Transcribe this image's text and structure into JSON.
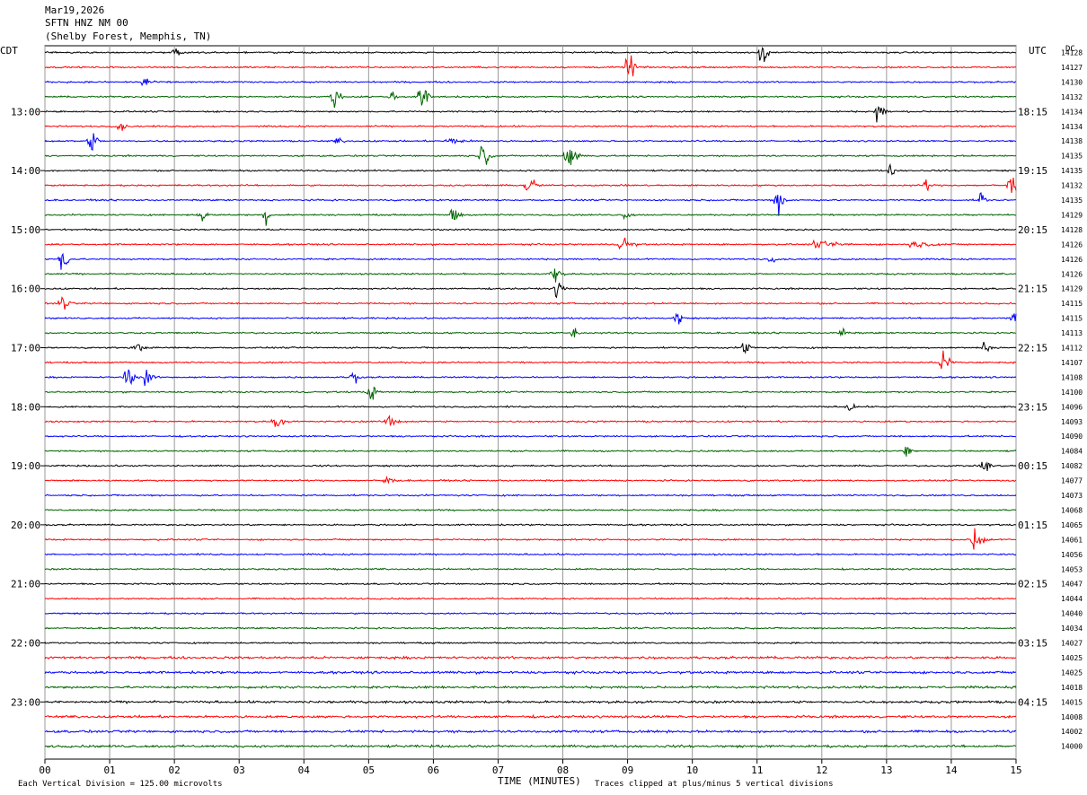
{
  "header": {
    "date": "Mar19,2026",
    "station": "SFTN HNZ NM 00",
    "location": "(Shelby Forest, Memphis, TN)"
  },
  "left_tz": "CDT",
  "right_tz": "UTC",
  "right_corner": "DC",
  "footer": {
    "scale_note": "Each Vertical Division = 125.00 microvolts",
    "xlabel": "TIME (MINUTES)",
    "clip_note": "Traces clipped at plus/minus 5 vertical divisions"
  },
  "chart_data": {
    "type": "line",
    "title": "SFTN HNZ NM 00",
    "xlabel": "TIME (MINUTES)",
    "ylabel": "",
    "xlim": [
      0,
      15
    ],
    "x_ticks": [
      "00",
      "01",
      "02",
      "03",
      "04",
      "05",
      "06",
      "07",
      "08",
      "09",
      "10",
      "11",
      "12",
      "13",
      "14",
      "15"
    ],
    "trace_colors": [
      "#000000",
      "#ff0000",
      "#0000ff",
      "#006400"
    ],
    "trace_count": 48,
    "trace_start": "12:00 CDT",
    "minutes_per_trace": 15,
    "left_hour_labels": [
      {
        "trace": 4,
        "label": "13:00"
      },
      {
        "trace": 8,
        "label": "14:00"
      },
      {
        "trace": 12,
        "label": "15:00"
      },
      {
        "trace": 16,
        "label": "16:00"
      },
      {
        "trace": 20,
        "label": "17:00"
      },
      {
        "trace": 24,
        "label": "18:00"
      },
      {
        "trace": 28,
        "label": "19:00"
      },
      {
        "trace": 32,
        "label": "20:00"
      },
      {
        "trace": 36,
        "label": "21:00"
      },
      {
        "trace": 40,
        "label": "22:00"
      },
      {
        "trace": 44,
        "label": "23:00"
      }
    ],
    "right_hour_labels": [
      {
        "trace": 4,
        "label": "18:15"
      },
      {
        "trace": 8,
        "label": "19:15"
      },
      {
        "trace": 12,
        "label": "20:15"
      },
      {
        "trace": 16,
        "label": "21:15"
      },
      {
        "trace": 20,
        "label": "22:15"
      },
      {
        "trace": 24,
        "label": "23:15"
      },
      {
        "trace": 28,
        "label": "00:15"
      },
      {
        "trace": 32,
        "label": "01:15"
      },
      {
        "trace": 36,
        "label": "02:15"
      },
      {
        "trace": 40,
        "label": "03:15"
      },
      {
        "trace": 44,
        "label": "04:15"
      }
    ],
    "dc_offsets": [
      "14128",
      "14127",
      "14130",
      "14132",
      "14134",
      "14134",
      "14138",
      "14135",
      "14135",
      "14132",
      "14135",
      "14129",
      "14128",
      "14126",
      "14126",
      "14126",
      "14129",
      "14115",
      "14115",
      "14113",
      "14112",
      "14107",
      "14108",
      "14100",
      "14096",
      "14093",
      "14090",
      "14084",
      "14082",
      "14077",
      "14073",
      "14068",
      "14065",
      "14061",
      "14056",
      "14053",
      "14047",
      "14044",
      "14040",
      "14034",
      "14027",
      "14025",
      "14025",
      "14018",
      "14015",
      "14008",
      "14002",
      "14000"
    ],
    "events": [
      {
        "trace": 0,
        "minute": 2.0,
        "amp": 1.2,
        "width": 0.08
      },
      {
        "trace": 0,
        "minute": 11.05,
        "amp": 1.5,
        "width": 0.12
      },
      {
        "trace": 1,
        "minute": 9.0,
        "amp": 2.0,
        "width": 0.12
      },
      {
        "trace": 2,
        "minute": 1.5,
        "amp": 1.6,
        "width": 0.1
      },
      {
        "trace": 3,
        "minute": 4.45,
        "amp": 1.6,
        "width": 0.1
      },
      {
        "trace": 3,
        "minute": 5.35,
        "amp": 0.9,
        "width": 0.08
      },
      {
        "trace": 3,
        "minute": 5.8,
        "amp": 2.2,
        "width": 0.1
      },
      {
        "trace": 4,
        "minute": 12.85,
        "amp": 1.6,
        "width": 0.1
      },
      {
        "trace": 5,
        "minute": 1.15,
        "amp": 0.9,
        "width": 0.08
      },
      {
        "trace": 6,
        "minute": 0.7,
        "amp": 1.6,
        "width": 0.1
      },
      {
        "trace": 6,
        "minute": 4.5,
        "amp": 0.4,
        "width": 0.1
      },
      {
        "trace": 6,
        "minute": 6.2,
        "amp": 0.4,
        "width": 0.25
      },
      {
        "trace": 7,
        "minute": 6.75,
        "amp": 2.2,
        "width": 0.1
      },
      {
        "trace": 7,
        "minute": 8.05,
        "amp": 2.2,
        "width": 0.15
      },
      {
        "trace": 8,
        "minute": 13.05,
        "amp": 1.2,
        "width": 0.06
      },
      {
        "trace": 9,
        "minute": 7.45,
        "amp": 1.8,
        "width": 0.12
      },
      {
        "trace": 9,
        "minute": 13.6,
        "amp": 1.0,
        "width": 0.08
      },
      {
        "trace": 9,
        "minute": 14.9,
        "amp": 1.8,
        "width": 0.12
      },
      {
        "trace": 10,
        "minute": 11.3,
        "amp": 2.2,
        "width": 0.12
      },
      {
        "trace": 10,
        "minute": 14.45,
        "amp": 1.8,
        "width": 0.06
      },
      {
        "trace": 11,
        "minute": 2.4,
        "amp": 1.4,
        "width": 0.08
      },
      {
        "trace": 11,
        "minute": 3.4,
        "amp": 1.4,
        "width": 0.08
      },
      {
        "trace": 11,
        "minute": 6.3,
        "amp": 1.5,
        "width": 0.1
      },
      {
        "trace": 11,
        "minute": 8.95,
        "amp": 0.5,
        "width": 0.1
      },
      {
        "trace": 13,
        "minute": 8.9,
        "amp": 1.6,
        "width": 0.14
      },
      {
        "trace": 13,
        "minute": 11.9,
        "amp": 0.4,
        "width": 0.4
      },
      {
        "trace": 13,
        "minute": 13.4,
        "amp": 0.4,
        "width": 0.35
      },
      {
        "trace": 14,
        "minute": 0.25,
        "amp": 2.4,
        "width": 0.1
      },
      {
        "trace": 14,
        "minute": 11.2,
        "amp": 0.8,
        "width": 0.06
      },
      {
        "trace": 15,
        "minute": 7.85,
        "amp": 1.6,
        "width": 0.1
      },
      {
        "trace": 16,
        "minute": 7.9,
        "amp": 1.3,
        "width": 0.1
      },
      {
        "trace": 17,
        "minute": 0.25,
        "amp": 1.4,
        "width": 0.1
      },
      {
        "trace": 18,
        "minute": 9.75,
        "amp": 1.4,
        "width": 0.08
      },
      {
        "trace": 18,
        "minute": 14.95,
        "amp": 1.3,
        "width": 0.08
      },
      {
        "trace": 19,
        "minute": 8.15,
        "amp": 1.0,
        "width": 0.08
      },
      {
        "trace": 19,
        "minute": 12.3,
        "amp": 0.8,
        "width": 0.08
      },
      {
        "trace": 20,
        "minute": 1.4,
        "amp": 0.8,
        "width": 0.1
      },
      {
        "trace": 20,
        "minute": 10.8,
        "amp": 1.6,
        "width": 0.08
      },
      {
        "trace": 20,
        "minute": 14.5,
        "amp": 1.0,
        "width": 0.08
      },
      {
        "trace": 21,
        "minute": 13.85,
        "amp": 1.6,
        "width": 0.14
      },
      {
        "trace": 22,
        "minute": 1.25,
        "amp": 1.6,
        "width": 0.12
      },
      {
        "trace": 22,
        "minute": 1.55,
        "amp": 1.4,
        "width": 0.1
      },
      {
        "trace": 22,
        "minute": 4.75,
        "amp": 1.2,
        "width": 0.08
      },
      {
        "trace": 23,
        "minute": 5.0,
        "amp": 1.6,
        "width": 0.1
      },
      {
        "trace": 24,
        "minute": 12.4,
        "amp": 1.0,
        "width": 0.08
      },
      {
        "trace": 25,
        "minute": 3.55,
        "amp": 1.4,
        "width": 0.1
      },
      {
        "trace": 25,
        "minute": 5.3,
        "amp": 1.4,
        "width": 0.1
      },
      {
        "trace": 27,
        "minute": 13.3,
        "amp": 1.0,
        "width": 0.1
      },
      {
        "trace": 28,
        "minute": 14.5,
        "amp": 1.2,
        "width": 0.1
      },
      {
        "trace": 29,
        "minute": 5.25,
        "amp": 1.0,
        "width": 0.1
      },
      {
        "trace": 33,
        "minute": 14.35,
        "amp": 2.4,
        "width": 0.14
      }
    ]
  }
}
